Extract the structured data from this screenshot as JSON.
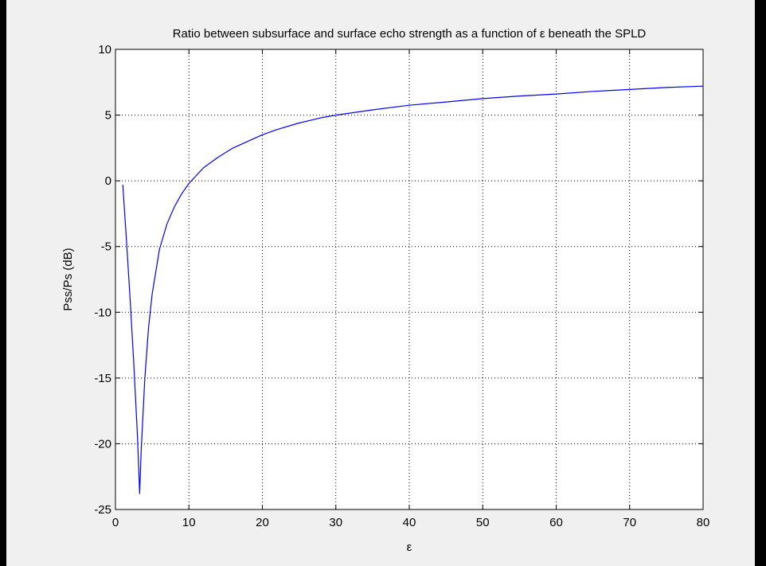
{
  "chart_data": {
    "type": "line",
    "title": "Ratio between subsurface and surface echo strength as a function of ε beneath the SPLD",
    "xlabel": "ε",
    "ylabel": "Pss/Ps (dB)",
    "xlim": [
      0,
      80
    ],
    "ylim": [
      -25,
      10
    ],
    "xticks": [
      0,
      10,
      20,
      30,
      40,
      50,
      60,
      70,
      80
    ],
    "yticks": [
      10,
      5,
      0,
      -5,
      -10,
      -15,
      -20,
      -25
    ],
    "grid": true,
    "series": [
      {
        "color": "#0000ff",
        "x": [
          1.0,
          1.5,
          2.0,
          2.5,
          3.0,
          3.3,
          3.5,
          4.0,
          4.5,
          5.0,
          6.0,
          7.0,
          8.0,
          9.0,
          10.0,
          11.0,
          12.0,
          14.0,
          16.0,
          18.0,
          20.0,
          22.0,
          25.0,
          28.0,
          30.0,
          35.0,
          40.0,
          45.0,
          50.0,
          55.0,
          60.0,
          65.0,
          70.0,
          75.0,
          80.0
        ],
        "y": [
          -0.3,
          -4.5,
          -9.0,
          -14.0,
          -19.5,
          -23.8,
          -20.5,
          -15.0,
          -11.2,
          -8.6,
          -5.2,
          -3.3,
          -2.0,
          -1.0,
          -0.2,
          0.4,
          1.0,
          1.8,
          2.5,
          3.0,
          3.5,
          3.9,
          4.4,
          4.8,
          5.0,
          5.4,
          5.75,
          6.0,
          6.25,
          6.45,
          6.6,
          6.8,
          6.95,
          7.1,
          7.2
        ]
      }
    ]
  }
}
